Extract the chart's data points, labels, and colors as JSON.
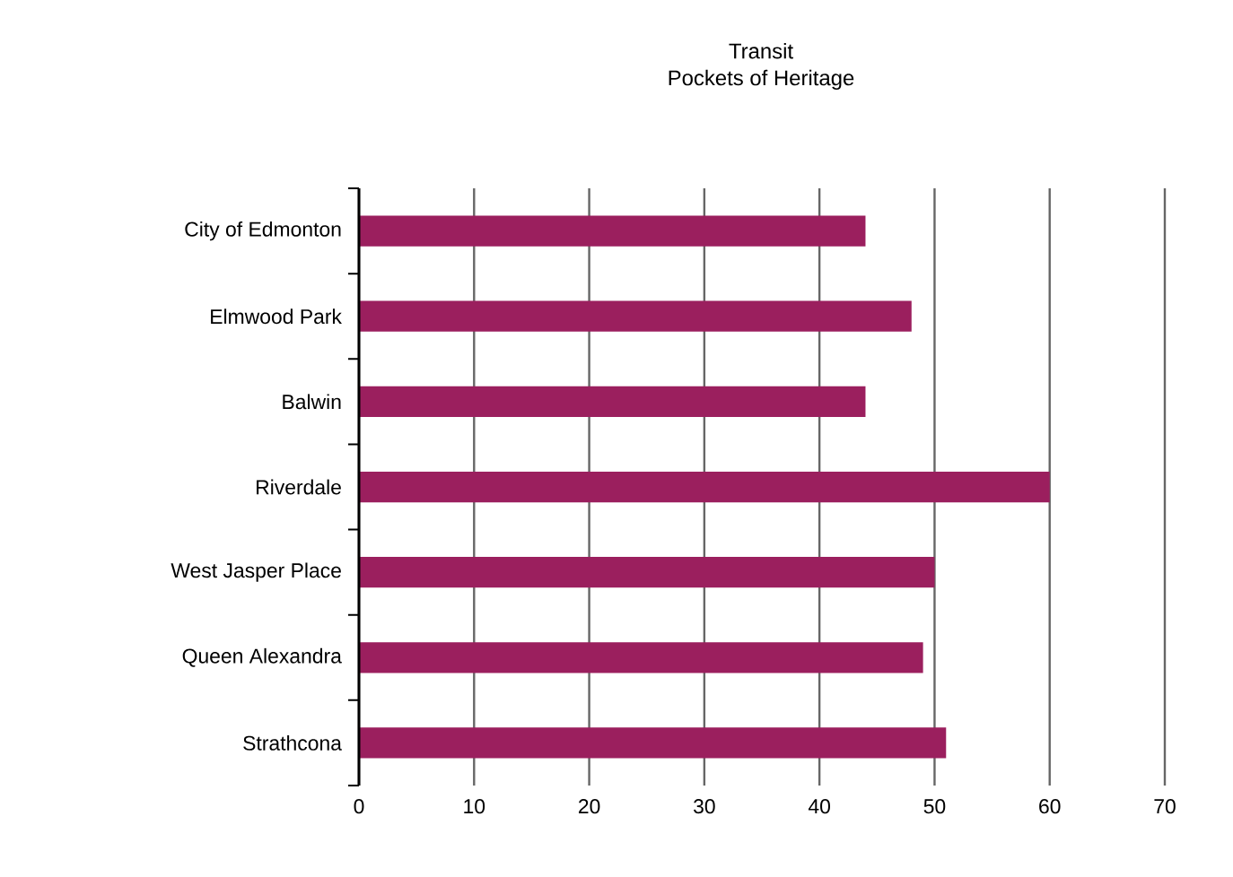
{
  "chart_data": {
    "type": "bar",
    "orientation": "horizontal",
    "title": "Transit",
    "subtitle": "Pockets of Heritage",
    "categories": [
      "City of Edmonton",
      "Elmwood Park",
      "Balwin",
      "Riverdale",
      "West Jasper Place",
      "Queen Alexandra",
      "Strathcona"
    ],
    "values": [
      44,
      48,
      44,
      60,
      50,
      49,
      51
    ],
    "color": "#9b1f5e",
    "xlim": [
      0,
      70
    ],
    "xticks": [
      0,
      10,
      20,
      30,
      40,
      50,
      60,
      70
    ],
    "grid": "x"
  }
}
